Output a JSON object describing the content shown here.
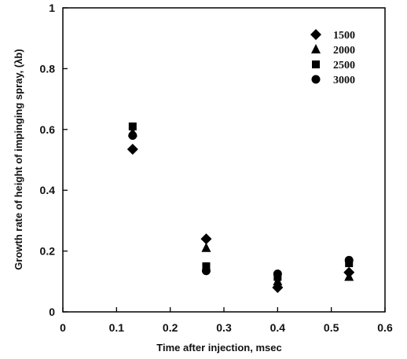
{
  "chart_data": {
    "type": "scatter",
    "title": "",
    "xlabel": "Time after injection, msec",
    "ylabel": "Growth rate of height of impinging spray, (λb)",
    "xlim": [
      0,
      0.6
    ],
    "ylim": [
      0,
      1
    ],
    "xticks": [
      "0",
      "0.1",
      "0.2",
      "0.3",
      "0.4",
      "0.5",
      "0.6"
    ],
    "yticks": [
      "0",
      "0.2",
      "0.4",
      "0.6",
      "0.8",
      "1"
    ],
    "grid": false,
    "legend_position": "top-right",
    "series": [
      {
        "name": "1500",
        "marker": "diamond",
        "color": "#000000",
        "points": [
          [
            0.13,
            0.535
          ],
          [
            0.267,
            0.24
          ],
          [
            0.4,
            0.08
          ],
          [
            0.533,
            0.13
          ]
        ]
      },
      {
        "name": "2000",
        "marker": "triangle",
        "color": "#000000",
        "points": [
          [
            0.13,
            0.59
          ],
          [
            0.267,
            0.21
          ],
          [
            0.4,
            0.1
          ],
          [
            0.533,
            0.115
          ]
        ]
      },
      {
        "name": "2500",
        "marker": "square",
        "color": "#000000",
        "points": [
          [
            0.13,
            0.61
          ],
          [
            0.267,
            0.15
          ],
          [
            0.4,
            0.115
          ],
          [
            0.533,
            0.16
          ]
        ]
      },
      {
        "name": "3000",
        "marker": "circle",
        "color": "#000000",
        "points": [
          [
            0.13,
            0.58
          ],
          [
            0.267,
            0.135
          ],
          [
            0.4,
            0.125
          ],
          [
            0.533,
            0.17
          ]
        ]
      }
    ]
  }
}
